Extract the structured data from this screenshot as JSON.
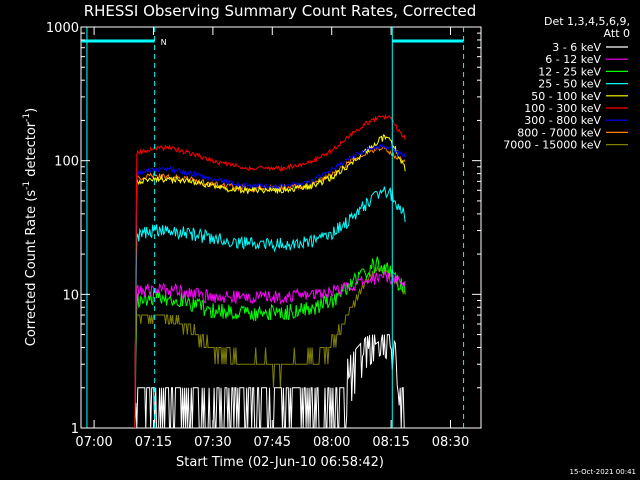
{
  "chart_data": {
    "type": "line",
    "title": "RHESSI Observing Summary Count Rates, Corrected",
    "xlabel": "Start Time (02-Jun-10 06:58:42)",
    "ylabel_main": "Corrected Count Rate (s",
    "ylabel_sup1": "-1",
    "ylabel_mid": " detector",
    "ylabel_sup2": "-1",
    "ylabel_end": ")",
    "yscale": "log",
    "ylim": [
      1,
      1000
    ],
    "xlim_minutes": [
      -2,
      99
    ],
    "x_start_time": "06:58:42",
    "x_ticks": [
      {
        "min": 1.3,
        "label": "07:00"
      },
      {
        "min": 16.3,
        "label": "07:15"
      },
      {
        "min": 31.3,
        "label": "07:30"
      },
      {
        "min": 46.3,
        "label": "07:45"
      },
      {
        "min": 61.3,
        "label": "08:00"
      },
      {
        "min": 76.3,
        "label": "08:15"
      },
      {
        "min": 91.3,
        "label": "08:30"
      }
    ],
    "y_ticks": [
      {
        "value": 1,
        "label": "1"
      },
      {
        "value": 10,
        "label": "10"
      },
      {
        "value": 100,
        "label": "100"
      },
      {
        "value": 1000,
        "label": "1000"
      }
    ],
    "legend_header": [
      "Det 1,3,4,5,6,9,",
      "Att 0"
    ],
    "legend_position": "right",
    "timestamp": "15-Oct-2021 00:41",
    "night_flag": "N",
    "night_bars": [
      {
        "x0": -2,
        "x1": 16.6
      },
      {
        "x0": 76.6,
        "x1": 94.6
      }
    ],
    "dashed_lines_minutes": [
      16.6,
      94.6
    ],
    "solid_lines_minutes": [
      -0.5,
      76.6
    ],
    "data_start_minutes": 11.6,
    "data_end_minutes": 80.6,
    "series": [
      {
        "name": "3 - 6 keV",
        "color": "#ffffff",
        "x": [
          11.6,
          12.0,
          20.0,
          26.0,
          30.0,
          60.0,
          62.5,
          66.0,
          70.0,
          74.0,
          76.0,
          78.0,
          80.0
        ],
        "y": [
          1.0,
          2.0,
          2.0,
          1.4,
          1.0,
          1.0,
          1.6,
          2.5,
          3.8,
          4.6,
          4.1,
          3.0,
          1.0
        ]
      },
      {
        "name": "6 - 12 keV",
        "color": "#ff00ff",
        "x": [
          11.6,
          12.0,
          18.0,
          24.0,
          30.0,
          40.0,
          50.0,
          56.0,
          62.0,
          66.0,
          70.0,
          73.0,
          75.0,
          77.0,
          80.0
        ],
        "y": [
          3.0,
          10.5,
          11.0,
          10.6,
          9.6,
          9.5,
          9.6,
          10.0,
          10.6,
          11.5,
          12.6,
          13.5,
          13.8,
          13.2,
          12.0
        ]
      },
      {
        "name": "12 - 25 keV",
        "color": "#00ff00",
        "x": [
          11.6,
          12.0,
          18.0,
          24.0,
          30.0,
          40.0,
          50.0,
          56.0,
          62.0,
          66.0,
          70.0,
          73.0,
          75.0,
          77.0,
          80.0
        ],
        "y": [
          2.5,
          9.0,
          9.6,
          9.0,
          7.6,
          7.2,
          7.3,
          7.8,
          9.2,
          11.8,
          15.0,
          16.8,
          16.0,
          13.5,
          10.5
        ]
      },
      {
        "name": "25 - 50 keV",
        "color": "#00ffff",
        "x": [
          11.6,
          12.0,
          16.0,
          24.0,
          32.0,
          40.0,
          48.0,
          55.0,
          60.0,
          64.0,
          68.0,
          72.0,
          74.5,
          77.0,
          80.0
        ],
        "y": [
          1.0,
          27.0,
          30.0,
          29.0,
          26.0,
          24.0,
          23.5,
          24.5,
          27.0,
          32.0,
          41.0,
          55.0,
          62.0,
          53.0,
          37.0
        ]
      },
      {
        "name": "50 - 100 keV",
        "color": "#ffff00",
        "x": [
          11.6,
          12.0,
          16.0,
          24.0,
          32.0,
          40.0,
          48.0,
          56.0,
          62.0,
          66.0,
          70.0,
          73.0,
          75.0,
          77.0,
          80.0
        ],
        "y": [
          1.0,
          70.0,
          74.0,
          71.0,
          63.0,
          60.0,
          60.0,
          64.0,
          77.0,
          95.0,
          118.0,
          140.0,
          152.0,
          128.0,
          86.0
        ]
      },
      {
        "name": "100 - 300 keV",
        "color": "#ff0000",
        "x": [
          11.6,
          12.0,
          16.0,
          20.0,
          26.0,
          32.0,
          40.0,
          48.0,
          56.0,
          62.0,
          66.0,
          70.0,
          74.0,
          76.0,
          78.0,
          80.0
        ],
        "y": [
          1.0,
          115.0,
          122.0,
          125.0,
          113.0,
          98.0,
          88.0,
          87.0,
          96.0,
          123.0,
          155.0,
          190.0,
          215.0,
          210.0,
          170.0,
          145.0
        ]
      },
      {
        "name": "300 - 800 keV",
        "color": "#0000ff",
        "x": [
          11.6,
          12.0,
          16.0,
          20.0,
          26.0,
          32.0,
          40.0,
          48.0,
          56.0,
          62.0,
          66.0,
          70.0,
          74.0,
          76.0,
          78.0,
          80.0
        ],
        "y": [
          1.0,
          80.0,
          85.0,
          87.0,
          80.0,
          72.0,
          65.0,
          64.0,
          70.0,
          88.0,
          105.0,
          120.0,
          128.0,
          125.0,
          115.0,
          110.0
        ]
      },
      {
        "name": "800 - 7000 keV",
        "color": "#ff8000",
        "x": [
          11.6,
          12.0,
          16.0,
          24.0,
          32.0,
          40.0,
          48.0,
          56.0,
          62.0,
          66.0,
          70.0,
          73.0,
          75.0,
          77.0,
          80.0
        ],
        "y": [
          1.0,
          74.0,
          77.0,
          74.0,
          66.0,
          62.0,
          62.0,
          66.0,
          80.0,
          98.0,
          115.0,
          125.0,
          122.0,
          110.0,
          100.0
        ]
      },
      {
        "name": "7000 - 15000 keV",
        "color": "#808000",
        "x": [
          11.6,
          12.0,
          16.0,
          20.0,
          24.0,
          27.0,
          32.0,
          40.0,
          50.0,
          56.0,
          60.0,
          63.0,
          66.0,
          70.0,
          73.0,
          75.0,
          77.0,
          80.0
        ],
        "y": [
          1.0,
          6.6,
          6.9,
          6.6,
          5.8,
          4.9,
          3.7,
          3.0,
          3.0,
          3.2,
          3.7,
          5.2,
          8.0,
          12.5,
          15.5,
          15.0,
          12.5,
          10.0
        ]
      }
    ]
  }
}
